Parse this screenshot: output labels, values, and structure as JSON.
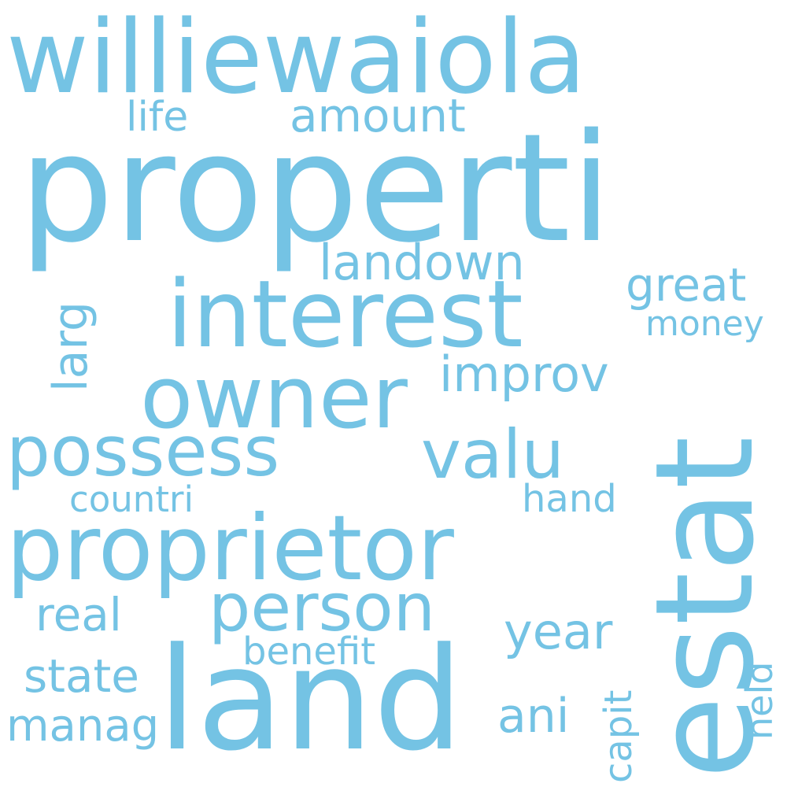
{
  "color": "#74c3e4",
  "background": "#ffffff",
  "words": [
    {
      "text": "properti"
    },
    {
      "text": "williewaiola"
    },
    {
      "text": "land"
    },
    {
      "text": "estat"
    },
    {
      "text": "interest"
    },
    {
      "text": "proprietor"
    },
    {
      "text": "owner"
    },
    {
      "text": "possess"
    },
    {
      "text": "person"
    },
    {
      "text": "valu"
    },
    {
      "text": "landown"
    },
    {
      "text": "great"
    },
    {
      "text": "larg"
    },
    {
      "text": "improv"
    },
    {
      "text": "amount"
    },
    {
      "text": "life"
    },
    {
      "text": "money"
    },
    {
      "text": "countri"
    },
    {
      "text": "hand"
    },
    {
      "text": "real"
    },
    {
      "text": "year"
    },
    {
      "text": "benefit"
    },
    {
      "text": "state"
    },
    {
      "text": "held"
    },
    {
      "text": "capit"
    },
    {
      "text": "ani"
    },
    {
      "text": "manag"
    }
  ]
}
